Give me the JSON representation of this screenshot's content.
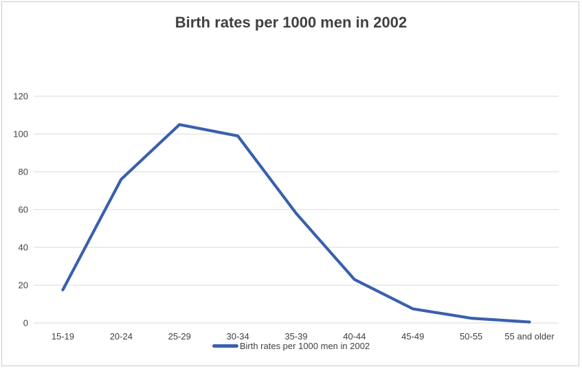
{
  "chart_data": {
    "type": "line",
    "title": "Birth rates per 1000 men in 2002",
    "categories": [
      "15-19",
      "20-24",
      "25-29",
      "30-34",
      "35-39",
      "40-44",
      "45-49",
      "50-55",
      "55 and older"
    ],
    "series": [
      {
        "name": "Birth rates per 1000 men in 2002",
        "values": [
          17.5,
          76,
          105,
          99,
          58,
          23,
          7.5,
          2.5,
          0.5
        ]
      }
    ],
    "xlabel": "",
    "ylabel": "",
    "ylim": [
      0,
      120
    ],
    "yticks": [
      0,
      20,
      40,
      60,
      80,
      100,
      120
    ],
    "grid": true,
    "legend_position": "bottom"
  },
  "colors": {
    "line": "#3A5FAD",
    "gridline": "#D9D9D9",
    "text": "#404040",
    "border": "#C9C9C9",
    "background": "#FFFFFF"
  }
}
